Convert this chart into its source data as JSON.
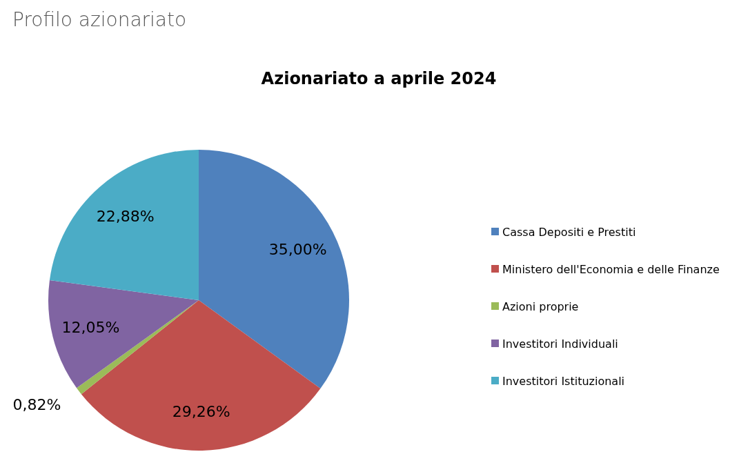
{
  "chart_data": {
    "type": "pie",
    "title": "Profilo azionariato",
    "subtitle": "Azionariato a aprile 2024",
    "categories": [
      "Cassa Depositi e Prestiti",
      "Ministero dell'Economia e delle Finanze",
      "Azioni proprie",
      "Investitori Individuali",
      "Investitori Istituzionali"
    ],
    "values": [
      35.0,
      29.26,
      0.82,
      12.05,
      22.88
    ],
    "value_labels": [
      "35,00%",
      "29,26%",
      "0,82%",
      "12,05%",
      "22,88%"
    ],
    "colors": [
      "#4f81bd",
      "#c0504d",
      "#9bbb59",
      "#8064a2",
      "#4bacc6"
    ],
    "legend": "right"
  }
}
